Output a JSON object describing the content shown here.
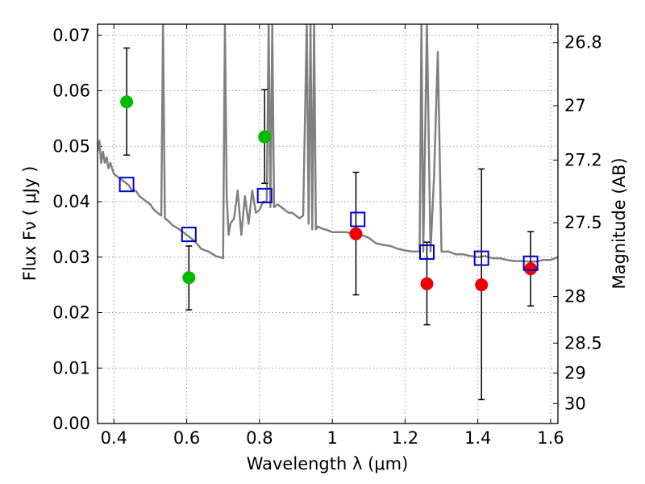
{
  "chart_data": {
    "type": "scatter",
    "xlabel": "Wavelength  λ (μm)",
    "ylabel": "Flux  Fν  ( μJy )",
    "ylabel_right": "Magnitude (AB)",
    "xlim": [
      0.355,
      1.62
    ],
    "ylim": [
      0.0,
      0.072
    ],
    "grid": true,
    "x_ticks": [
      0.4,
      0.6,
      0.8,
      1.0,
      1.2,
      1.4,
      1.6
    ],
    "x_tick_labels": [
      "0.4",
      "0.6",
      "0.8",
      "1",
      "1.2",
      "1.4",
      "1.6"
    ],
    "y_ticks": [
      0.0,
      0.01,
      0.02,
      0.03,
      0.04,
      0.05,
      0.06,
      0.07
    ],
    "y_tick_labels": [
      "0.00",
      "0.01",
      "0.02",
      "0.03",
      "0.04",
      "0.05",
      "0.06",
      "0.07"
    ],
    "right_ticks": [
      {
        "label": "26.8",
        "flux": 0.0687
      },
      {
        "label": "27",
        "flux": 0.0573
      },
      {
        "label": "27.2",
        "flux": 0.0475
      },
      {
        "label": "27.5",
        "flux": 0.0362
      },
      {
        "label": "28",
        "flux": 0.0229
      },
      {
        "label": "28.5",
        "flux": 0.0145
      },
      {
        "label": "29",
        "flux": 0.0091
      },
      {
        "label": "30",
        "flux": 0.0036
      }
    ],
    "colors": {
      "model": "#808080",
      "green": "#00bb00",
      "red": "#ee0000",
      "square": "#0000cc",
      "errorbar": "#000000",
      "grid": "#9a9a9a"
    },
    "model_spectrum": {
      "name": "",
      "x": [
        0.355,
        0.36,
        0.365,
        0.37,
        0.375,
        0.38,
        0.385,
        0.39,
        0.4,
        0.41,
        0.42,
        0.43,
        0.44,
        0.45,
        0.46,
        0.47,
        0.48,
        0.49,
        0.5,
        0.51,
        0.52,
        0.53,
        0.535,
        0.54,
        0.55,
        0.56,
        0.58,
        0.6,
        0.62,
        0.64,
        0.66,
        0.68,
        0.7,
        0.705,
        0.71,
        0.715,
        0.72,
        0.73,
        0.74,
        0.75,
        0.76,
        0.77,
        0.78,
        0.79,
        0.8,
        0.81,
        0.82,
        0.825,
        0.83,
        0.835,
        0.84,
        0.85,
        0.86,
        0.87,
        0.88,
        0.89,
        0.9,
        0.91,
        0.92,
        0.93,
        0.935,
        0.94,
        0.945,
        0.95,
        0.955,
        0.96,
        0.97,
        0.98,
        0.99,
        1.0,
        1.02,
        1.04,
        1.06,
        1.08,
        1.1,
        1.12,
        1.14,
        1.16,
        1.18,
        1.2,
        1.22,
        1.24,
        1.245,
        1.25,
        1.26,
        1.27,
        1.28,
        1.29,
        1.3,
        1.32,
        1.34,
        1.36,
        1.38,
        1.4,
        1.42,
        1.44,
        1.46,
        1.48,
        1.5,
        1.52,
        1.54,
        1.56,
        1.58,
        1.6,
        1.62
      ],
      "y": [
        0.049,
        0.051,
        0.047,
        0.049,
        0.047,
        0.048,
        0.046,
        0.047,
        0.045,
        0.0445,
        0.044,
        0.0435,
        0.043,
        0.042,
        0.042,
        0.041,
        0.0405,
        0.04,
        0.0395,
        0.0385,
        0.038,
        0.0375,
        0.072,
        0.037,
        0.0365,
        0.0358,
        0.035,
        0.034,
        0.033,
        0.0315,
        0.031,
        0.0302,
        0.0298,
        0.072,
        0.041,
        0.034,
        0.036,
        0.037,
        0.042,
        0.034,
        0.041,
        0.036,
        0.042,
        0.038,
        0.0385,
        0.04,
        0.04,
        0.072,
        0.039,
        0.072,
        0.039,
        0.0395,
        0.039,
        0.0385,
        0.038,
        0.038,
        0.0375,
        0.037,
        0.0375,
        0.072,
        0.036,
        0.072,
        0.035,
        0.072,
        0.035,
        0.0355,
        0.0352,
        0.035,
        0.0348,
        0.0345,
        0.0345,
        0.0345,
        0.034,
        0.034,
        0.0335,
        0.0325,
        0.0322,
        0.032,
        0.0315,
        0.0312,
        0.031,
        0.031,
        0.072,
        0.031,
        0.072,
        0.031,
        0.045,
        0.067,
        0.031,
        0.031,
        0.0305,
        0.0305,
        0.0302,
        0.03,
        0.0302,
        0.0298,
        0.0298,
        0.0295,
        0.0293,
        0.0293,
        0.0292,
        0.0292,
        0.0295,
        0.0295,
        0.03
      ]
    },
    "model_photometry": {
      "name": "",
      "x": [
        0.435,
        0.606,
        0.814,
        1.07,
        1.26,
        1.41,
        1.545
      ],
      "y": [
        0.0431,
        0.0341,
        0.0411,
        0.0368,
        0.0309,
        0.0298,
        0.0289
      ]
    },
    "observed_green": {
      "name": "",
      "x": [
        0.435,
        0.606,
        0.814
      ],
      "y": [
        0.058,
        0.0263,
        0.0517
      ],
      "err_low": [
        0.0484,
        0.0205,
        0.0433
      ],
      "err_high": [
        0.0677,
        0.032,
        0.0602
      ]
    },
    "observed_red": {
      "name": "",
      "x": [
        1.065,
        1.26,
        1.41,
        1.545
      ],
      "y": [
        0.0342,
        0.0252,
        0.025,
        0.0279
      ],
      "err_low": [
        0.0232,
        0.0178,
        0.0043,
        0.0212
      ],
      "err_high": [
        0.0453,
        0.0327,
        0.0459,
        0.0346
      ]
    }
  }
}
